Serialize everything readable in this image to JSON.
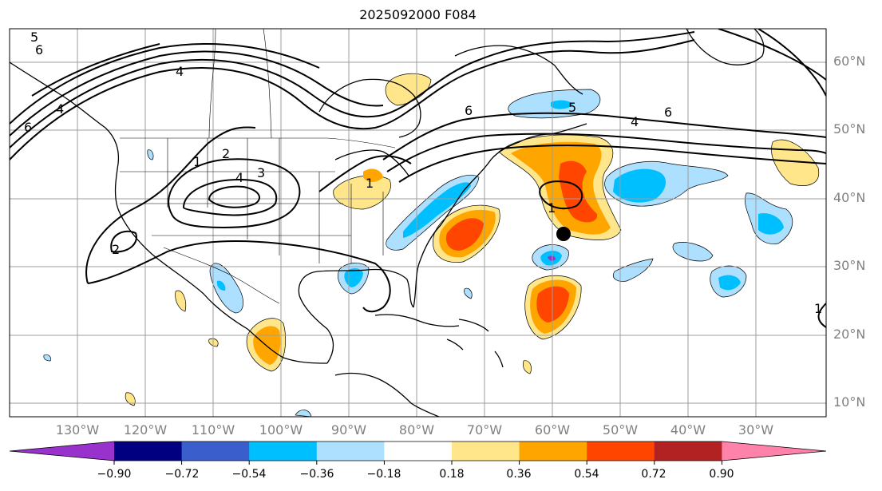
{
  "title": "2025092000 F084",
  "lat_labels": [
    "60°N",
    "50°N",
    "40°N",
    "30°N",
    "20°N",
    "10°N"
  ],
  "lon_labels": [
    "130°W",
    "120°W",
    "110°W",
    "100°W",
    "90°W",
    "80°W",
    "70°W",
    "60°W",
    "50°W",
    "40°W",
    "30°W"
  ],
  "colorbar": {
    "ticks": [
      "−0.90",
      "−0.72",
      "−0.54",
      "−0.36",
      "−0.18",
      "0.18",
      "0.36",
      "0.54",
      "0.72",
      "0.90"
    ],
    "colors": [
      "#9932CC",
      "#000080",
      "#3A5FCD",
      "#00BFFF",
      "#ADDFFF",
      "#FFFFFF",
      "#FFE68A",
      "#FFA500",
      "#FF4500",
      "#B22222",
      "#FF82AB"
    ]
  },
  "contour_labels": [
    "5",
    "6",
    "4",
    "4",
    "6",
    "5",
    "4",
    "6",
    "1",
    "2",
    "4",
    "3",
    "1",
    "2",
    "1",
    "6",
    "1"
  ],
  "marker": "storm-center"
}
